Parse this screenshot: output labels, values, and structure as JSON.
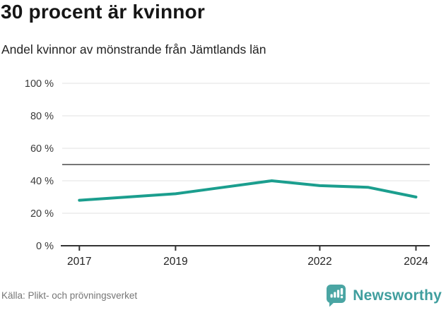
{
  "header": {
    "title": "30 procent är kvinnor",
    "subtitle": "Andel kvinnor av mönstrande från Jämtlands län"
  },
  "chart_data": {
    "type": "line",
    "x": [
      2017,
      2018,
      2019,
      2020,
      2021,
      2022,
      2023,
      2024
    ],
    "series": [
      {
        "name": "Andel kvinnor av mönstrande",
        "values": [
          28,
          30,
          32,
          36,
          40,
          37,
          36,
          30
        ]
      }
    ],
    "unit": "%",
    "ylim": [
      0,
      100
    ],
    "yticks": [
      0,
      20,
      40,
      60,
      80,
      100
    ],
    "ytick_label_format": "{v} %",
    "xticks": [
      2017,
      2019,
      2022,
      2024
    ],
    "reference_line": 50,
    "grid": true,
    "legend_position": "none",
    "title": "30 procent är kvinnor",
    "subtitle": "Andel kvinnor av mönstrande från Jämtlands län",
    "xlabel": "",
    "ylabel": ""
  },
  "colors": {
    "line": "#1b9e8e",
    "grid": "#e1e1e1",
    "reference": "#636363",
    "axis": "#333333",
    "brand_teal": "#4aa5a3",
    "brand_text": "#3f9e9e"
  },
  "footer": {
    "source": "Källa: Plikt- och prövningsverket",
    "brand": "Newsworthy"
  },
  "icons": {
    "logo": "newsworthy-bar-chart-bubble-icon"
  }
}
